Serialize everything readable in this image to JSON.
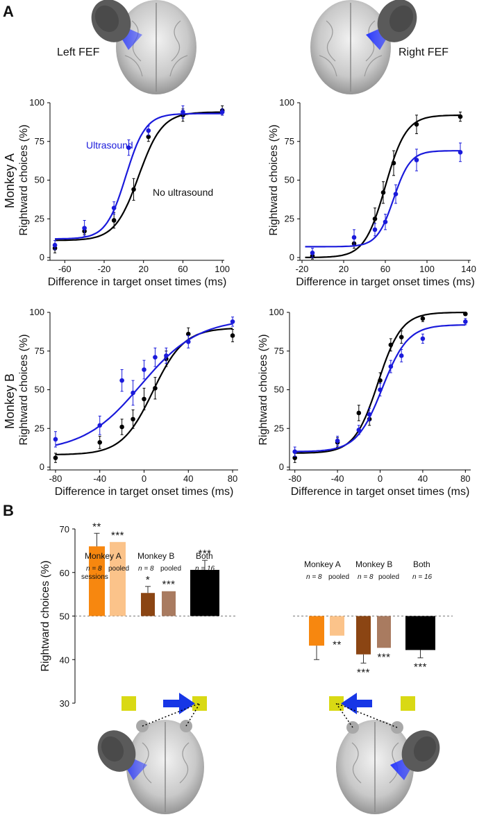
{
  "figure": {
    "panel_a_label": "A",
    "panel_b_label": "B",
    "left_fef_label": "Left FEF",
    "right_fef_label": "Right FEF",
    "monkey_a_row_label": "Monkey A",
    "monkey_b_row_label": "Monkey B"
  },
  "colors": {
    "ultrasound": "#1a1adb",
    "no_ultrasound": "#000000",
    "monkey_a_sessions": "#f7870f",
    "monkey_a_pooled": "#fbc38a",
    "monkey_b_sessions": "#8b4513",
    "monkey_b_pooled": "#a97b60",
    "both": "#000000",
    "target": "#d9d914",
    "arrow": "#1736e6",
    "transducer": "#5a5a5a"
  },
  "chart_data": [
    {
      "id": "monkeyA_leftFEF",
      "type": "line",
      "xlabel": "Difference in target onset times (ms)",
      "ylabel": "Rightward choices (%)",
      "xlim": [
        -75,
        102
      ],
      "ylim": [
        0,
        100
      ],
      "xticks": [
        -60,
        -20,
        20,
        60,
        100
      ],
      "yticks": [
        0,
        25,
        50,
        75,
        100
      ],
      "annotations": [
        "Ultrasound",
        "No ultrasound"
      ],
      "series": [
        {
          "name": "No ultrasound",
          "color": "#000000",
          "x": [
            -70,
            -40,
            -10,
            10,
            25,
            60,
            100
          ],
          "y": [
            6,
            17,
            24,
            44,
            78,
            92,
            95
          ],
          "err": [
            3,
            2,
            5,
            7,
            3,
            4,
            3
          ],
          "fit": {
            "base": 11,
            "top": 94,
            "mid": 15,
            "slope": 12
          }
        },
        {
          "name": "Ultrasound",
          "color": "#1a1adb",
          "x": [
            -70,
            -40,
            -10,
            5,
            25,
            60,
            100
          ],
          "y": [
            8,
            19,
            32,
            71,
            82,
            94,
            94
          ],
          "err": [
            3,
            5,
            4,
            5,
            3,
            4,
            2
          ],
          "fit": {
            "base": 12,
            "top": 93,
            "mid": 2,
            "slope": 10
          }
        }
      ]
    },
    {
      "id": "monkeyA_rightFEF",
      "type": "line",
      "xlabel": "Difference in target onset times (ms)",
      "ylabel": "Rightward choices (%)",
      "xlim": [
        -22,
        142
      ],
      "ylim": [
        0,
        100
      ],
      "xticks": [
        -20,
        20,
        60,
        100,
        140
      ],
      "yticks": [
        0,
        25,
        50,
        75,
        100
      ],
      "series": [
        {
          "name": "No ultrasound",
          "color": "#000000",
          "x": [
            -10,
            30,
            50,
            58,
            68,
            90,
            132
          ],
          "y": [
            1,
            9,
            25,
            42,
            61,
            86,
            91
          ],
          "err": [
            2,
            3,
            7,
            7,
            8,
            6,
            3
          ],
          "fit": {
            "base": 0,
            "top": 92,
            "mid": 60,
            "slope": 10
          }
        },
        {
          "name": "Ultrasound",
          "color": "#1a1adb",
          "x": [
            -10,
            30,
            50,
            60,
            70,
            90,
            132
          ],
          "y": [
            3,
            13,
            18,
            23,
            41,
            63,
            68
          ],
          "err": [
            3,
            5,
            4,
            5,
            6,
            7,
            6
          ],
          "fit": {
            "base": 7,
            "top": 69,
            "mid": 68,
            "slope": 8
          }
        }
      ]
    },
    {
      "id": "monkeyB_leftFEF",
      "type": "line",
      "xlabel": "Difference in target onset times (ms)",
      "ylabel": "Rightward choices (%)",
      "xlim": [
        -85,
        85
      ],
      "ylim": [
        0,
        100
      ],
      "xticks": [
        -80,
        -40,
        0,
        40,
        80
      ],
      "yticks": [
        0,
        25,
        50,
        75,
        100
      ],
      "series": [
        {
          "name": "No ultrasound",
          "color": "#000000",
          "x": [
            -80,
            -40,
            -20,
            -10,
            0,
            10,
            20,
            40,
            80
          ],
          "y": [
            6,
            16,
            26,
            31,
            44,
            51,
            70,
            86,
            85
          ],
          "err": [
            3,
            4,
            5,
            6,
            7,
            7,
            5,
            4,
            4
          ],
          "fit": {
            "base": 8,
            "top": 90,
            "mid": 8,
            "slope": 14
          }
        },
        {
          "name": "Ultrasound",
          "color": "#1a1adb",
          "x": [
            -80,
            -40,
            -20,
            -10,
            0,
            10,
            20,
            40,
            80
          ],
          "y": [
            18,
            27,
            56,
            48,
            63,
            71,
            72,
            81,
            94
          ],
          "err": [
            5,
            6,
            7,
            8,
            6,
            6,
            5,
            4,
            3
          ],
          "fit": {
            "base": 10,
            "top": 96,
            "mid": -3,
            "slope": 26
          }
        }
      ]
    },
    {
      "id": "monkeyB_rightFEF",
      "type": "line",
      "xlabel": "Difference in target onset times (ms)",
      "ylabel": "Rightward choices (%)",
      "xlim": [
        -85,
        85
      ],
      "ylim": [
        0,
        100
      ],
      "xticks": [
        -80,
        -40,
        0,
        40,
        80
      ],
      "yticks": [
        0,
        25,
        50,
        75,
        100
      ],
      "series": [
        {
          "name": "No ultrasound",
          "color": "#000000",
          "x": [
            -80,
            -40,
            -20,
            -10,
            0,
            10,
            20,
            40,
            80
          ],
          "y": [
            6,
            16,
            35,
            31,
            56,
            79,
            84,
            96,
            99
          ],
          "err": [
            3,
            3,
            5,
            4,
            5,
            4,
            4,
            2,
            1
          ],
          "fit": {
            "base": 9,
            "top": 100,
            "mid": -2,
            "slope": 11
          }
        },
        {
          "name": "Ultrasound",
          "color": "#1a1adb",
          "x": [
            -80,
            -40,
            -20,
            -10,
            0,
            10,
            20,
            40,
            80
          ],
          "y": [
            10,
            17,
            24,
            34,
            50,
            65,
            72,
            83,
            94
          ],
          "err": [
            3,
            3,
            3,
            4,
            4,
            4,
            4,
            3,
            2
          ],
          "fit": {
            "base": 10,
            "top": 92,
            "mid": 2,
            "slope": 12
          }
        }
      ]
    },
    {
      "id": "panelB_bars",
      "type": "bar",
      "ylabel": "Rightward choices (%)",
      "ylim": [
        30,
        70
      ],
      "yticks": [
        30,
        40,
        50,
        60,
        70
      ],
      "baseline": 50,
      "left_group": {
        "bars": [
          {
            "name": "Monkey A sessions",
            "value": 66,
            "err": 3,
            "color": "#f7870f",
            "stars": "**"
          },
          {
            "name": "Monkey A pooled",
            "value": 67,
            "err": 0,
            "color": "#fbc38a",
            "stars": "***"
          },
          {
            "name": "Monkey B sessions",
            "value": 55.3,
            "err": 1.5,
            "color": "#8b4513",
            "stars": "*"
          },
          {
            "name": "Monkey B pooled",
            "value": 55.7,
            "err": 0,
            "color": "#a97b60",
            "stars": "***"
          },
          {
            "name": "Both",
            "value": 60.6,
            "err": 2.2,
            "color": "#000000",
            "stars": "***"
          }
        ],
        "labels": {
          "monkey_a": "Monkey A",
          "monkey_b": "Monkey B",
          "both": "Both",
          "n8": "n = 8",
          "sessions": "sessions",
          "pooled": "pooled",
          "n16": "n = 16"
        }
      },
      "right_group": {
        "bars": [
          {
            "name": "Monkey A sessions",
            "value": 43.2,
            "err": 3.2,
            "color": "#f7870f",
            "stars": ""
          },
          {
            "name": "Monkey A pooled",
            "value": 45.5,
            "err": 0,
            "color": "#fbc38a",
            "stars": "**"
          },
          {
            "name": "Monkey B sessions",
            "value": 41.2,
            "err": 2,
            "color": "#8b4513",
            "stars": "***"
          },
          {
            "name": "Monkey B pooled",
            "value": 42.7,
            "err": 0,
            "color": "#a97b60",
            "stars": "***"
          },
          {
            "name": "Both",
            "value": 42.2,
            "err": 1.8,
            "color": "#000000",
            "stars": "***"
          }
        ],
        "labels": {
          "monkey_a": "Monkey A",
          "monkey_b": "Monkey B",
          "both": "Both",
          "n8": "n = 8",
          "pooled": "pooled",
          "n16": "n = 16"
        }
      }
    }
  ]
}
